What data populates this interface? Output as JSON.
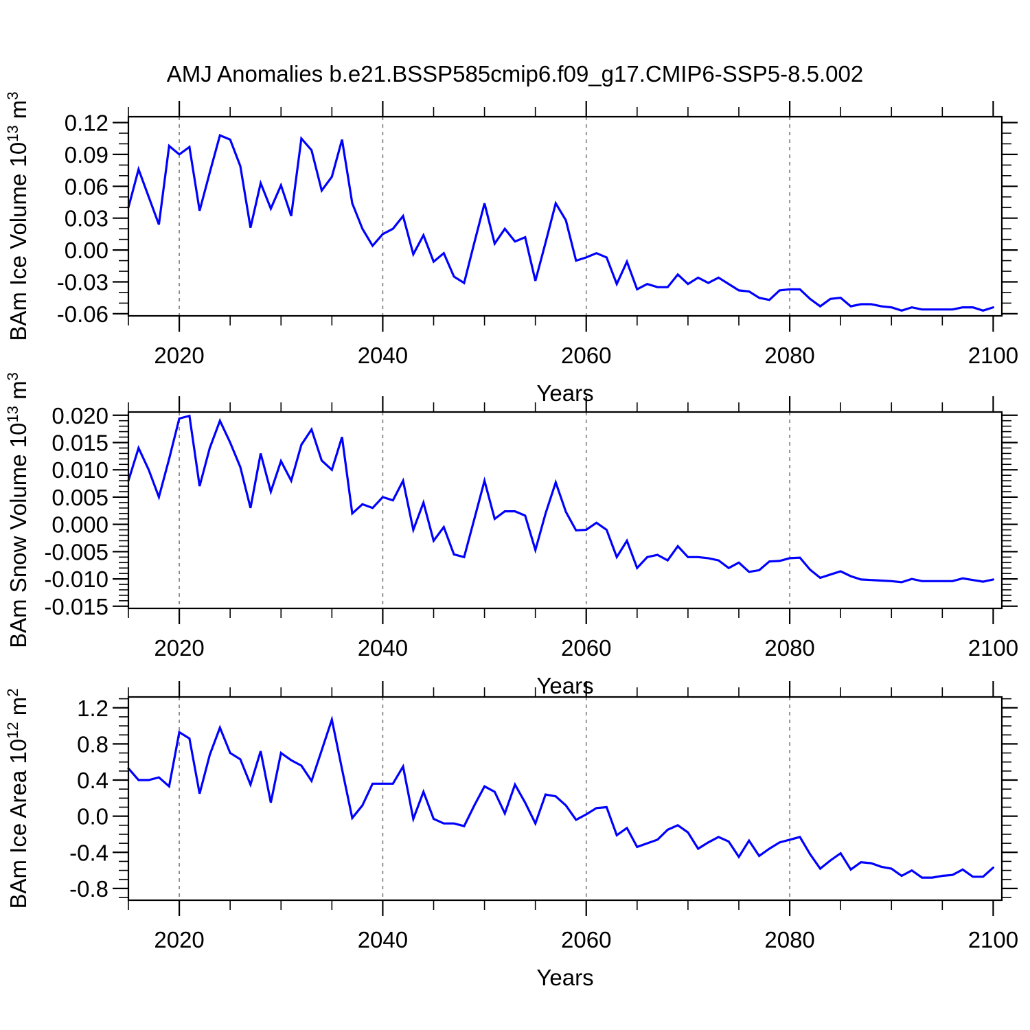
{
  "title": "AMJ Anomalies b.e21.BSSP585cmip6.f09_g17.CMIP6-SSP5-8.5.002",
  "colors": {
    "line": "#0000ff",
    "grid": "#7a7a7a",
    "frame": "#000000",
    "background": "#ffffff"
  },
  "x_axis": {
    "label": "Years",
    "range": [
      2015,
      2100.85
    ],
    "major_ticks": [
      2020,
      2040,
      2060,
      2080,
      2100
    ],
    "major_tick_labels": [
      "2020",
      "2040",
      "2060",
      "2080",
      "2100"
    ],
    "minor_tick_step": 5,
    "grid_years": [
      2020,
      2040,
      2060,
      2080
    ]
  },
  "chart_data": [
    {
      "type": "line",
      "title": "",
      "xlabel": "Years",
      "ylabel": "BAm Ice Volume 10^13 m^3",
      "ylabel_parts": [
        {
          "t": "BAm Ice Volume 10"
        },
        {
          "t": "13",
          "sup": true
        },
        {
          "t": " m"
        },
        {
          "t": "3",
          "sup": true
        }
      ],
      "ylim": [
        -0.062,
        0.1255
      ],
      "yticks": [
        0.12,
        0.09,
        0.06,
        0.03,
        0.0,
        -0.03,
        -0.06
      ],
      "ytick_labels": [
        "0.12",
        "0.09",
        "0.06",
        "0.03",
        "0.00",
        "-0.03",
        "-0.06"
      ],
      "y_minor_step": 0.01,
      "grid": "vertical-dashed",
      "legend": "none",
      "x": [
        2015,
        2016,
        2017,
        2018,
        2019,
        2020,
        2021,
        2022,
        2023,
        2024,
        2025,
        2026,
        2027,
        2028,
        2029,
        2030,
        2031,
        2032,
        2033,
        2034,
        2035,
        2036,
        2037,
        2038,
        2039,
        2040,
        2041,
        2042,
        2043,
        2044,
        2045,
        2046,
        2047,
        2048,
        2049,
        2050,
        2051,
        2052,
        2053,
        2054,
        2055,
        2056,
        2057,
        2058,
        2059,
        2060,
        2061,
        2062,
        2063,
        2064,
        2065,
        2066,
        2067,
        2068,
        2069,
        2070,
        2071,
        2072,
        2073,
        2074,
        2075,
        2076,
        2077,
        2078,
        2079,
        2080,
        2081,
        2082,
        2083,
        2084,
        2085,
        2086,
        2087,
        2088,
        2089,
        2090,
        2091,
        2092,
        2093,
        2094,
        2095,
        2096,
        2097,
        2098,
        2099,
        2100
      ],
      "series": [
        {
          "name": "BAm Ice Volume anomaly",
          "values": [
            0.04,
            0.076,
            0.05,
            0.024,
            0.098,
            0.09,
            0.097,
            0.037,
            0.073,
            0.108,
            0.104,
            0.079,
            0.021,
            0.063,
            0.039,
            0.061,
            0.032,
            0.105,
            0.094,
            0.056,
            0.069,
            0.104,
            0.044,
            0.02,
            0.004,
            0.015,
            0.02,
            0.032,
            -0.004,
            0.014,
            -0.011,
            -0.003,
            -0.025,
            -0.031,
            0.007,
            0.044,
            0.006,
            0.02,
            0.008,
            0.012,
            -0.029,
            0.007,
            0.044,
            0.028,
            -0.01,
            -0.007,
            -0.003,
            -0.007,
            -0.032,
            -0.011,
            -0.037,
            -0.032,
            -0.035,
            -0.035,
            -0.023,
            -0.032,
            -0.026,
            -0.031,
            -0.026,
            -0.032,
            -0.038,
            -0.039,
            -0.045,
            -0.047,
            -0.038,
            -0.037,
            -0.037,
            -0.046,
            -0.053,
            -0.046,
            -0.045,
            -0.053,
            -0.051,
            -0.051,
            -0.053,
            -0.054,
            -0.057,
            -0.054,
            -0.056,
            -0.056,
            -0.056,
            -0.056,
            -0.054,
            -0.054,
            -0.057,
            -0.054
          ]
        }
      ]
    },
    {
      "type": "line",
      "title": "",
      "xlabel": "Years",
      "ylabel": "BAm Snow Volume 10^13 m^3",
      "ylabel_parts": [
        {
          "t": "BAm Snow Volume 10"
        },
        {
          "t": "13",
          "sup": true
        },
        {
          "t": " m"
        },
        {
          "t": "3",
          "sup": true
        }
      ],
      "ylim": [
        -0.0154,
        0.0206
      ],
      "yticks": [
        0.02,
        0.015,
        0.01,
        0.005,
        0.0,
        -0.005,
        -0.01,
        -0.015
      ],
      "ytick_labels": [
        "0.020",
        "0.015",
        "0.010",
        "0.005",
        "0.000",
        "-0.005",
        "-0.010",
        "-0.015"
      ],
      "y_minor_step": 0.001,
      "grid": "vertical-dashed",
      "legend": "none",
      "x": [
        2015,
        2016,
        2017,
        2018,
        2019,
        2020,
        2021,
        2022,
        2023,
        2024,
        2025,
        2026,
        2027,
        2028,
        2029,
        2030,
        2031,
        2032,
        2033,
        2034,
        2035,
        2036,
        2037,
        2038,
        2039,
        2040,
        2041,
        2042,
        2043,
        2044,
        2045,
        2046,
        2047,
        2048,
        2049,
        2050,
        2051,
        2052,
        2053,
        2054,
        2055,
        2056,
        2057,
        2058,
        2059,
        2060,
        2061,
        2062,
        2063,
        2064,
        2065,
        2066,
        2067,
        2068,
        2069,
        2070,
        2071,
        2072,
        2073,
        2074,
        2075,
        2076,
        2077,
        2078,
        2079,
        2080,
        2081,
        2082,
        2083,
        2084,
        2085,
        2086,
        2087,
        2088,
        2089,
        2090,
        2091,
        2092,
        2093,
        2094,
        2095,
        2096,
        2097,
        2098,
        2099,
        2100
      ],
      "series": [
        {
          "name": "BAm Snow Volume anomaly",
          "values": [
            0.008,
            0.014,
            0.01,
            0.005,
            0.012,
            0.0194,
            0.0199,
            0.007,
            0.014,
            0.019,
            0.015,
            0.0105,
            0.003,
            0.013,
            0.006,
            0.0116,
            0.008,
            0.0146,
            0.0174,
            0.0117,
            0.01,
            0.016,
            0.002,
            0.0037,
            0.003,
            0.005,
            0.0044,
            0.008,
            -0.001,
            0.004,
            -0.003,
            -0.0005,
            -0.0055,
            -0.006,
            0.001,
            0.008,
            0.001,
            0.0024,
            0.0024,
            0.0016,
            -0.0047,
            0.002,
            0.0077,
            0.0023,
            -0.0011,
            -0.001,
            0.0003,
            -0.001,
            -0.006,
            -0.003,
            -0.008,
            -0.006,
            -0.0056,
            -0.0066,
            -0.004,
            -0.006,
            -0.006,
            -0.0062,
            -0.0066,
            -0.008,
            -0.007,
            -0.0087,
            -0.0084,
            -0.0068,
            -0.0067,
            -0.0062,
            -0.0061,
            -0.0083,
            -0.0098,
            -0.0092,
            -0.0086,
            -0.0095,
            -0.0101,
            -0.0102,
            -0.0103,
            -0.0104,
            -0.0106,
            -0.01,
            -0.0104,
            -0.0104,
            -0.0104,
            -0.0104,
            -0.0099,
            -0.0102,
            -0.0105,
            -0.0101
          ]
        }
      ]
    },
    {
      "type": "line",
      "title": "",
      "xlabel": "Years",
      "ylabel": "BAm Ice Area 10^12 m^2",
      "ylabel_parts": [
        {
          "t": "BAm Ice Area 10"
        },
        {
          "t": "12",
          "sup": true
        },
        {
          "t": " m"
        },
        {
          "t": "2",
          "sup": true
        }
      ],
      "ylim": [
        -0.93,
        1.32
      ],
      "yticks": [
        1.2,
        0.8,
        0.4,
        0.0,
        -0.4,
        -0.8
      ],
      "ytick_labels": [
        "1.2",
        "0.8",
        "0.4",
        "0.0",
        "-0.4",
        "-0.8"
      ],
      "y_minor_step": 0.1,
      "grid": "vertical-dashed",
      "legend": "none",
      "x": [
        2015,
        2016,
        2017,
        2018,
        2019,
        2020,
        2021,
        2022,
        2023,
        2024,
        2025,
        2026,
        2027,
        2028,
        2029,
        2030,
        2031,
        2032,
        2033,
        2034,
        2035,
        2036,
        2037,
        2038,
        2039,
        2040,
        2041,
        2042,
        2043,
        2044,
        2045,
        2046,
        2047,
        2048,
        2049,
        2050,
        2051,
        2052,
        2053,
        2054,
        2055,
        2056,
        2057,
        2058,
        2059,
        2060,
        2061,
        2062,
        2063,
        2064,
        2065,
        2066,
        2067,
        2068,
        2069,
        2070,
        2071,
        2072,
        2073,
        2074,
        2075,
        2076,
        2077,
        2078,
        2079,
        2080,
        2081,
        2082,
        2083,
        2084,
        2085,
        2086,
        2087,
        2088,
        2089,
        2090,
        2091,
        2092,
        2093,
        2094,
        2095,
        2096,
        2097,
        2098,
        2099,
        2100
      ],
      "series": [
        {
          "name": "BAm Ice Area anomaly",
          "values": [
            0.53,
            0.4,
            0.4,
            0.43,
            0.33,
            0.93,
            0.86,
            0.25,
            0.68,
            0.98,
            0.7,
            0.63,
            0.35,
            0.72,
            0.15,
            0.7,
            0.62,
            0.56,
            0.39,
            0.73,
            1.07,
            0.52,
            -0.02,
            0.12,
            0.36,
            0.36,
            0.36,
            0.55,
            -0.03,
            0.27,
            -0.03,
            -0.08,
            -0.08,
            -0.11,
            0.12,
            0.33,
            0.27,
            0.03,
            0.35,
            0.15,
            -0.08,
            0.24,
            0.22,
            0.12,
            -0.04,
            0.02,
            0.09,
            0.1,
            -0.21,
            -0.13,
            -0.34,
            -0.3,
            -0.26,
            -0.15,
            -0.1,
            -0.18,
            -0.36,
            -0.29,
            -0.23,
            -0.28,
            -0.45,
            -0.27,
            -0.44,
            -0.36,
            -0.29,
            -0.26,
            -0.23,
            -0.42,
            -0.58,
            -0.49,
            -0.41,
            -0.59,
            -0.51,
            -0.52,
            -0.56,
            -0.58,
            -0.66,
            -0.6,
            -0.68,
            -0.68,
            -0.66,
            -0.65,
            -0.59,
            -0.67,
            -0.67,
            -0.57
          ]
        }
      ]
    }
  ]
}
